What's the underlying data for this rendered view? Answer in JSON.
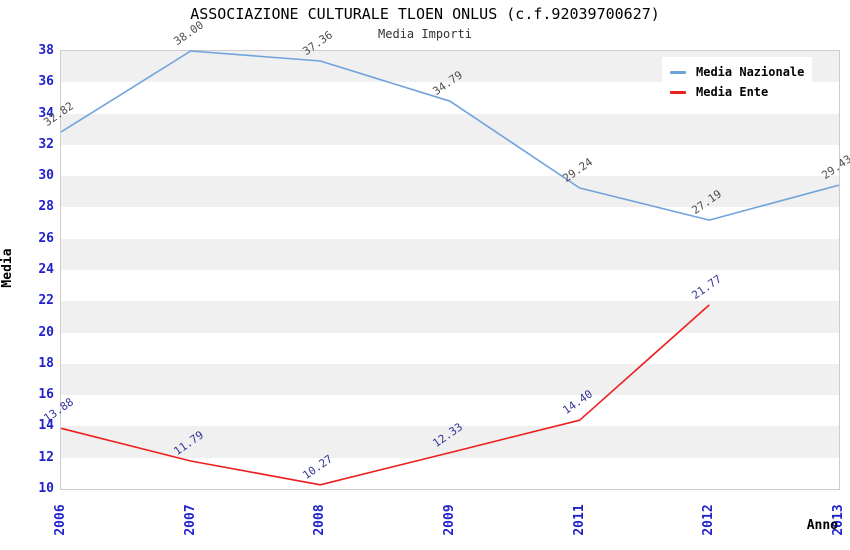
{
  "title": "ASSOCIAZIONE CULTURALE TLOEN ONLUS (c.f.92039700627)",
  "subtitle": "Media Importi",
  "y_axis_label": "Media",
  "x_axis_label": "Anno",
  "legend": {
    "position": "top-right",
    "items": [
      {
        "label": "Media Nazionale",
        "color": "#6fa3dc"
      },
      {
        "label": "Media Ente",
        "color": "#ed1f1f"
      }
    ]
  },
  "colors": {
    "band_gray": "#f0f0f0",
    "plot_border": "#cccccc",
    "tick_label_blue": "#2222cc",
    "national_line_blue": "#6fa3dc",
    "entity_line_red": "#ed1f1f",
    "national_point_label": "#4d4d4d",
    "entity_point_label": "#333399"
  },
  "chart_data": {
    "type": "line",
    "title": "ASSOCIAZIONE CULTURALE TLOEN ONLUS (c.f.92039700627)",
    "subtitle": "Media Importi",
    "xlabel": "Anno",
    "ylabel": "Media",
    "x": [
      "2006",
      "2007",
      "2008",
      "2009",
      "2011",
      "2012",
      "2013"
    ],
    "series": [
      {
        "name": "Media Nazionale",
        "color": "#6fa3dc",
        "label_color": "#4d4d4d",
        "values": [
          32.82,
          38.0,
          37.36,
          34.79,
          29.24,
          27.19,
          29.43
        ]
      },
      {
        "name": "Media Ente",
        "color": "#ed1f1f",
        "label_color": "#333399",
        "values": [
          13.88,
          11.79,
          10.27,
          12.33,
          14.4,
          21.77,
          null
        ]
      }
    ],
    "ylim": [
      10,
      38
    ],
    "y_tick_step": 2,
    "grid": "horizontal-alternating-bands",
    "legend_position": "top-right",
    "point_labels": "two-decimals-rotated"
  }
}
